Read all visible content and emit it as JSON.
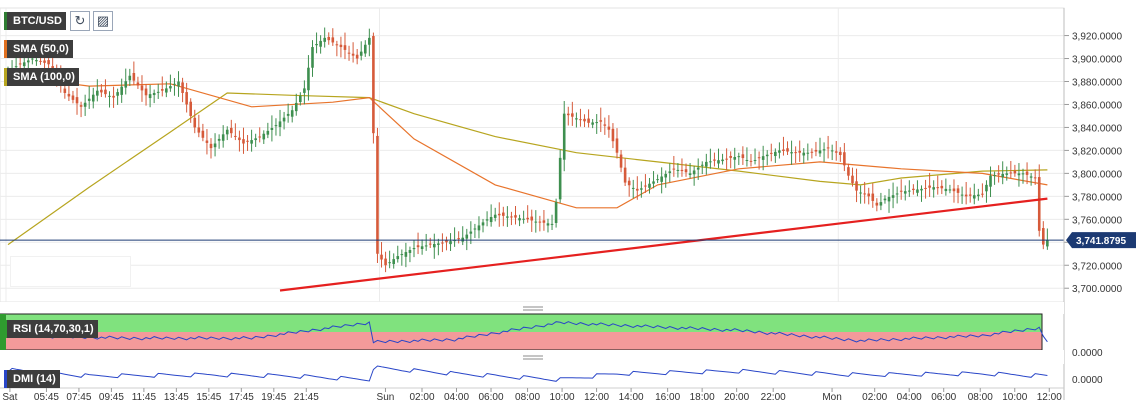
{
  "symbol": "BTC/USD",
  "toolbar": {
    "refresh_icon": "refresh-icon",
    "indicators_icon": "candles-icon"
  },
  "indicators": [
    {
      "label": "SMA (50,0)",
      "color": "#e8742c"
    },
    {
      "label": "SMA (100,0)",
      "color": "#b7a51f"
    }
  ],
  "rsi_label": "RSI (14,70,30,1)",
  "dmi_label": "DMI (14)",
  "rsi_value_label": "0.0000",
  "dmi_value_label": "0.0000",
  "colors": {
    "up": "#3e8f4f",
    "down": "#d65a3a",
    "trendline": "#e5201f",
    "price_line": "#1c3a73",
    "rsi_band_high": "#80e27e",
    "rsi_band_low": "#f39a9a",
    "oscillator": "#2946c8"
  },
  "chart_data": {
    "type": "candlestick",
    "title": "BTC/USD",
    "last_price": 3741.8795,
    "last_price_label": "3,741.8795",
    "ylim": [
      3688,
      3944
    ],
    "y_ticks": [
      3700,
      3720,
      3740,
      3760,
      3780,
      3800,
      3820,
      3840,
      3860,
      3880,
      3900,
      3920
    ],
    "y_tick_labels": [
      "3,700.0000",
      "3,720.0000",
      "3,740.0000",
      "3,760.0000",
      "3,780.0000",
      "3,800.0000",
      "3,820.0000",
      "3,840.0000",
      "3,860.0000",
      "3,880.0000",
      "3,900.0000",
      "3,920.0000"
    ],
    "x_tick_labels": [
      "Sat",
      "05:45",
      "07:45",
      "09:45",
      "11:45",
      "13:45",
      "15:45",
      "17:45",
      "19:45",
      "21:45",
      "Sun",
      "02:00",
      "04:00",
      "06:00",
      "08:00",
      "10:00",
      "12:00",
      "14:00",
      "16:00",
      "18:00",
      "20:00",
      "22:00",
      "Mon",
      "02:00",
      "04:00",
      "06:00",
      "08:00",
      "10:00",
      "12:00"
    ],
    "grid": true,
    "close_anchors": [
      [
        0,
        3890
      ],
      [
        6,
        3900
      ],
      [
        10,
        3895
      ],
      [
        14,
        3870
      ],
      [
        18,
        3858
      ],
      [
        22,
        3872
      ],
      [
        26,
        3866
      ],
      [
        30,
        3885
      ],
      [
        34,
        3868
      ],
      [
        38,
        3872
      ],
      [
        42,
        3880
      ],
      [
        46,
        3840
      ],
      [
        50,
        3822
      ],
      [
        54,
        3838
      ],
      [
        58,
        3826
      ],
      [
        62,
        3832
      ],
      [
        66,
        3842
      ],
      [
        70,
        3855
      ],
      [
        73,
        3874
      ],
      [
        75,
        3910
      ],
      [
        78,
        3918
      ],
      [
        82,
        3910
      ],
      [
        86,
        3900
      ],
      [
        89,
        3918
      ],
      [
        90,
        3835
      ],
      [
        91,
        3730
      ],
      [
        93,
        3720
      ],
      [
        96,
        3728
      ],
      [
        100,
        3735
      ],
      [
        104,
        3738
      ],
      [
        108,
        3740
      ],
      [
        112,
        3744
      ],
      [
        115,
        3752
      ],
      [
        118,
        3760
      ],
      [
        120,
        3764
      ],
      [
        124,
        3762
      ],
      [
        128,
        3760
      ],
      [
        130,
        3758
      ],
      [
        134,
        3756
      ],
      [
        135,
        3775
      ],
      [
        137,
        3852
      ],
      [
        140,
        3848
      ],
      [
        143,
        3844
      ],
      [
        146,
        3845
      ],
      [
        148,
        3838
      ],
      [
        150,
        3818
      ],
      [
        152,
        3792
      ],
      [
        155,
        3785
      ],
      [
        160,
        3795
      ],
      [
        164,
        3804
      ],
      [
        168,
        3800
      ],
      [
        172,
        3810
      ],
      [
        176,
        3812
      ],
      [
        180,
        3815
      ],
      [
        183,
        3810
      ],
      [
        186,
        3815
      ],
      [
        190,
        3820
      ],
      [
        194,
        3818
      ],
      [
        198,
        3818
      ],
      [
        202,
        3822
      ],
      [
        205,
        3816
      ],
      [
        207,
        3798
      ],
      [
        209,
        3785
      ],
      [
        212,
        3780
      ],
      [
        214,
        3772
      ],
      [
        216,
        3778
      ],
      [
        220,
        3784
      ],
      [
        224,
        3786
      ],
      [
        228,
        3788
      ],
      [
        232,
        3786
      ],
      [
        236,
        3780
      ],
      [
        240,
        3782
      ],
      [
        242,
        3798
      ],
      [
        246,
        3800
      ],
      [
        250,
        3800
      ],
      [
        253,
        3796
      ],
      [
        254,
        3750
      ],
      [
        255,
        3738
      ],
      [
        256,
        3742
      ]
    ],
    "series": [
      {
        "name": "SMA (50,0)",
        "points": [
          [
            0,
            3885
          ],
          [
            20,
            3876
          ],
          [
            40,
            3878
          ],
          [
            60,
            3858
          ],
          [
            80,
            3862
          ],
          [
            89,
            3866
          ],
          [
            100,
            3830
          ],
          [
            120,
            3790
          ],
          [
            140,
            3770
          ],
          [
            150,
            3770
          ],
          [
            160,
            3790
          ],
          [
            180,
            3804
          ],
          [
            200,
            3810
          ],
          [
            220,
            3804
          ],
          [
            240,
            3800
          ],
          [
            256,
            3790
          ]
        ]
      },
      {
        "name": "SMA (100,0)",
        "points": [
          [
            0,
            3738
          ],
          [
            20,
            3788
          ],
          [
            40,
            3836
          ],
          [
            54,
            3870
          ],
          [
            70,
            3868
          ],
          [
            89,
            3866
          ],
          [
            100,
            3852
          ],
          [
            120,
            3832
          ],
          [
            140,
            3818
          ],
          [
            160,
            3810
          ],
          [
            180,
            3802
          ],
          [
            200,
            3793
          ],
          [
            210,
            3790
          ],
          [
            220,
            3796
          ],
          [
            240,
            3802
          ],
          [
            256,
            3803
          ]
        ]
      },
      {
        "name": "trendline",
        "points": [
          [
            67,
            3698
          ],
          [
            256,
            3778
          ]
        ]
      }
    ],
    "rsi_anchors": [
      [
        0,
        0.4
      ],
      [
        30,
        0.3
      ],
      [
        60,
        0.3
      ],
      [
        89,
        0.9
      ],
      [
        90,
        0.15
      ],
      [
        110,
        0.25
      ],
      [
        136,
        0.9
      ],
      [
        150,
        0.8
      ],
      [
        180,
        0.6
      ],
      [
        210,
        0.2
      ],
      [
        240,
        0.4
      ],
      [
        254,
        0.7
      ],
      [
        256,
        0.1
      ]
    ],
    "dmi_anchors": [
      [
        0,
        0.75
      ],
      [
        20,
        0.5
      ],
      [
        50,
        0.55
      ],
      [
        70,
        0.5
      ],
      [
        89,
        0.35
      ],
      [
        90,
        0.85
      ],
      [
        110,
        0.6
      ],
      [
        136,
        0.35
      ],
      [
        150,
        0.6
      ],
      [
        180,
        0.7
      ],
      [
        210,
        0.55
      ],
      [
        240,
        0.6
      ],
      [
        256,
        0.5
      ]
    ]
  }
}
